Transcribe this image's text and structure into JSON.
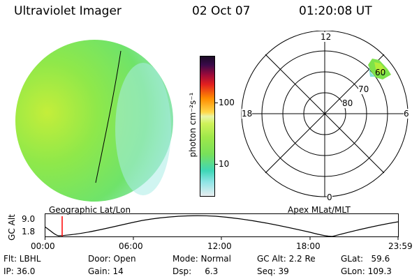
{
  "header": {
    "instrument": "Ultraviolet Imager",
    "date": "02 Oct 07",
    "time": "01:20:08 UT"
  },
  "colorbar": {
    "label": "photon cm⁻²s⁻¹",
    "ticks": [
      "100",
      "10"
    ]
  },
  "polar_plot": {
    "mlt_labels": [
      "12",
      "18",
      "6",
      "0"
    ],
    "lat_labels": [
      "60",
      "70",
      "80"
    ]
  },
  "projection_labels": {
    "left": "Geographic Lat/Lon",
    "right": "Apex MLat/MLT"
  },
  "altitude_plot": {
    "ylabel": "GC Alt",
    "yticks": [
      "9.0",
      "1.8"
    ],
    "xticks": [
      "00:00",
      "06:00",
      "12:00",
      "18:00",
      "23:59"
    ]
  },
  "status": {
    "flt": "Flt: LBHL",
    "ip": "IP: 36.0",
    "door": "Door: Open",
    "gain": "Gain: 14",
    "mode": "Mode: Normal",
    "dsp": "Dsp:     6.3",
    "gc_alt": "GC Alt: 2.2 Re",
    "seq": "Seq: 39",
    "glat": "GLat:   59.6",
    "glon": "GLon: 109.3"
  },
  "colors": {
    "disk_main": "#7de84a",
    "disk_bright": "#b8ee3c",
    "disk_edge": "#9fe8e0",
    "marker": "#ff0000"
  }
}
